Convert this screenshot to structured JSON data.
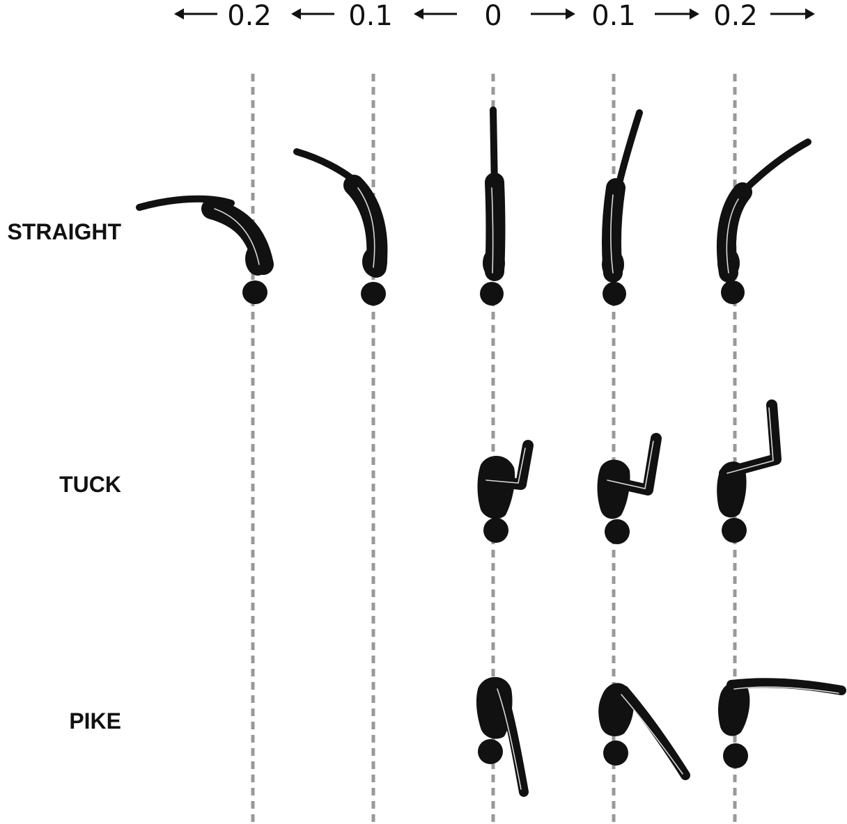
{
  "scale": {
    "labels": [
      "0.2",
      "0.1",
      "0",
      "0.1",
      "0.2"
    ]
  },
  "rows": [
    {
      "label": "STRAIGHT"
    },
    {
      "label": "TUCK"
    },
    {
      "label": "PIKE"
    }
  ],
  "colors": {
    "silhouette": "#111111",
    "guide": "#999999",
    "background": "#ffffff"
  },
  "icons": {
    "arrow_left": "arrow-left-icon",
    "arrow_right": "arrow-right-icon",
    "diver": "diver-silhouette-icon"
  }
}
